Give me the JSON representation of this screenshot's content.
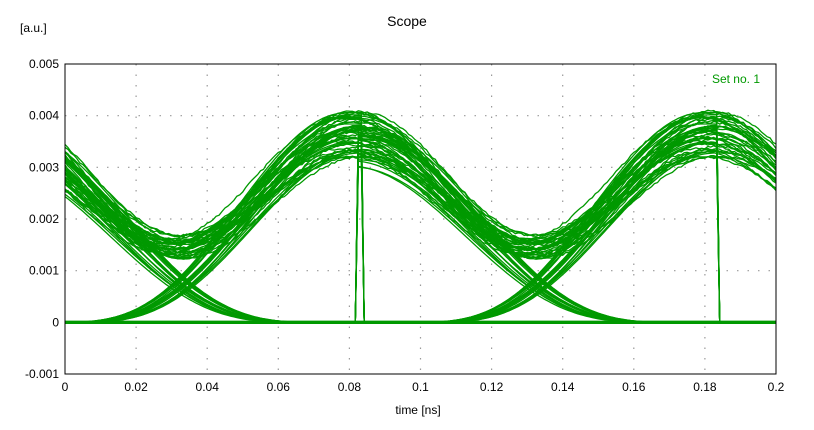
{
  "chart_data": {
    "type": "line",
    "title": "Scope",
    "ylabel": "[a.u.]",
    "xlabel": "time [ns]",
    "xlim": [
      0,
      0.2
    ],
    "ylim": [
      -0.001,
      0.005
    ],
    "xticks": [
      "0",
      "0.02",
      "0.04",
      "0.06",
      "0.08",
      "0.1",
      "0.12",
      "0.14",
      "0.16",
      "0.18",
      "0.2"
    ],
    "yticks": [
      "-0.001",
      "0",
      "0.001",
      "0.002",
      "0.003",
      "0.004",
      "0.005"
    ],
    "grid": true,
    "legend": {
      "position": "top-right",
      "entries": [
        "Set no. 1"
      ]
    },
    "series": [
      {
        "name": "Set no. 1",
        "color": "#009900",
        "description_values": {
          "bit_period_ns": 0.1,
          "high_level_range": [
            0.0033,
            0.0041
          ],
          "high_peak_times_ns": [
            0.082,
            0.182
          ],
          "eye_min_level_range": [
            0.0013,
            0.0017
          ],
          "eye_min_times_ns": [
            0.033,
            0.133
          ],
          "zero_level": 0.0
        }
      }
    ]
  }
}
